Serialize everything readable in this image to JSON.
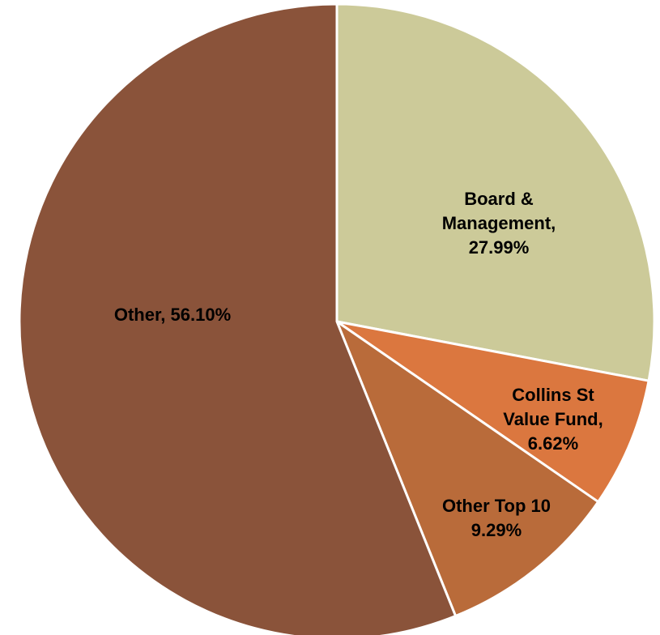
{
  "chart_data": {
    "type": "pie",
    "title": "",
    "start_angle_deg": 0,
    "direction": "clockwise",
    "slices": [
      {
        "label": "Board & Management",
        "value": 27.99,
        "label_lines": [
          "Board &",
          "Management,",
          "27.99%"
        ],
        "color": "#CCCA99"
      },
      {
        "label": "Collins St Value Fund",
        "value": 6.62,
        "label_lines": [
          "Collins St",
          "Value Fund,",
          "6.62%"
        ],
        "color": "#DB773F"
      },
      {
        "label": "Other Top 10",
        "value": 9.29,
        "label_lines": [
          "Other Top 10",
          "9.29%"
        ],
        "color": "#B96B3A"
      },
      {
        "label": "Other",
        "value": 56.1,
        "label_lines": [
          "Other, 56.10%"
        ],
        "color": "#8A533A"
      }
    ],
    "slice_border_color": "#FFFFFF",
    "legend": "none"
  }
}
